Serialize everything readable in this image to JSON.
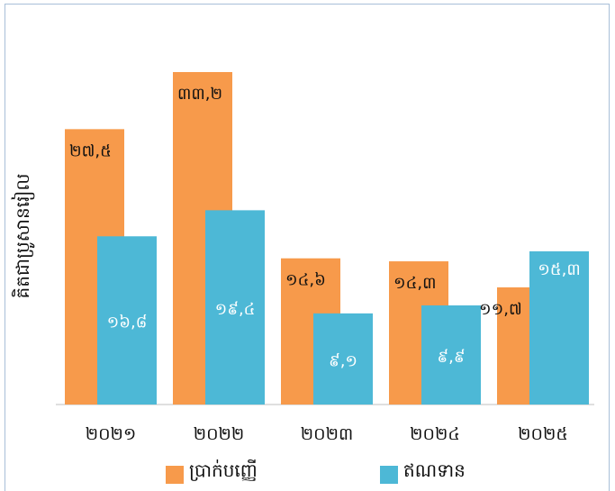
{
  "chart_data": {
    "type": "bar",
    "categories": [
      "២០២១",
      "២០២២",
      "២០២៣",
      "២០២៤",
      "២០២៥"
    ],
    "series": [
      {
        "name": "ប្រាក់បញ្ញើ",
        "color": "#F79A4B",
        "values": [
          27.5,
          33.2,
          14.6,
          14.3,
          11.7
        ],
        "labels": [
          "២៧,៥",
          "៣៣,២",
          "១៤,៦",
          "១៤,៣",
          "១១,៧"
        ]
      },
      {
        "name": "ឥណទាន",
        "color": "#4DB8D6",
        "values": [
          16.8,
          19.4,
          9.1,
          9.9,
          15.3
        ],
        "labels": [
          "១៦,៨",
          "១៩,៤",
          "៩,១",
          "៩,៩",
          "១៥,៣"
        ]
      }
    ],
    "ylabel": "គិតជាប្រូសានរៀល",
    "ylim": [
      0,
      35
    ],
    "grid": false,
    "legend": "bottom"
  }
}
